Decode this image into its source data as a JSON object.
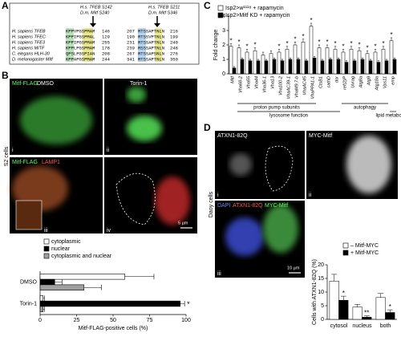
{
  "figure": {
    "panel_letters": [
      "A",
      "B",
      "C",
      "D"
    ],
    "alignment": {
      "sites": [
        {
          "human": "H.s. TFEB S142",
          "fly": "D.m. Mitf S240"
        },
        {
          "human": "H.s. TFEB S211",
          "fly": "D.m. Mitf S346"
        }
      ],
      "rows": [
        {
          "species": "H. sapiens TFEB",
          "seq1": "KPPVPGSPMAM",
          "end1": 146,
          "start2": 207,
          "seq2": "RTSSAPTNLN",
          "end2": 216
        },
        {
          "species": "H. sapiens TFEC",
          "seq1": "KPPIPGSPMAL",
          "end1": 129,
          "start2": 190,
          "seq2": "RTSSVPTNLN",
          "end2": 199
        },
        {
          "species": "H. sapiens TFE3",
          "seq1": "KPPIPGSPMAM",
          "end1": 255,
          "start2": 231,
          "seq2": "RTSSAPTNLN",
          "end2": 240
        },
        {
          "species": "H. sapiens MITF",
          "seq1": "KPPLPGSPMAM",
          "end1": 178,
          "start2": 239,
          "seq2": "RSSSAPTNLN",
          "end2": 248
        },
        {
          "species": "C. elegans HLH-30",
          "seq1": "QPSLPGSPIAN",
          "end1": 208,
          "start2": 267,
          "seq2": "RTSSAPSNLN",
          "end2": 276
        },
        {
          "species": "D. melanogaster Mitf",
          "seq1": "KPPAPGSPMAM",
          "end1": 244,
          "start2": 341,
          "seq2": "RTSSAPTNLN",
          "end2": 350
        }
      ]
    },
    "microscopy_B": {
      "side_label": "S2 cells",
      "conditions": [
        "DMSO",
        "Torin-1"
      ],
      "stain_top": "Mitf-FLAG",
      "stain_bottom": [
        "Mitf-FLAG",
        "LAMP1"
      ],
      "subpanels": [
        "i",
        "ii",
        "iii",
        "iv"
      ],
      "scale_bar": "5 µm"
    },
    "microscopy_D": {
      "side_label": "Daoy cells",
      "stains": [
        "ATXN1-82Q",
        "MYC-Mitf"
      ],
      "merge": [
        "DAPI",
        "ATXN1-82Q",
        "MYC-Mitf"
      ],
      "subpanels": [
        "i",
        "ii",
        "iii"
      ],
      "scale_bar": "10 µm"
    }
  },
  "chart_data": [
    {
      "type": "bar",
      "orientation": "horizontal",
      "categories": [
        "DMSO",
        "Torin-1"
      ],
      "series": [
        {
          "name": "cytoplasmic",
          "color": "#ffffff",
          "values": [
            58,
            2
          ],
          "errors": [
            20,
            1
          ],
          "significance": [
            null,
            null
          ]
        },
        {
          "name": "nuclear",
          "color": "#000000",
          "values": [
            10,
            96
          ],
          "errors": [
            5,
            3
          ],
          "significance": [
            null,
            "*"
          ]
        },
        {
          "name": "cytoplasmic and nuclear",
          "color": "#a0a0a0",
          "values": [
            30,
            2
          ],
          "errors": [
            12,
            1
          ],
          "significance": [
            null,
            null
          ]
        }
      ],
      "xlabel": "Mitf-FLAG-positive cells (%)",
      "xlim": [
        0,
        100
      ],
      "xticks": [
        0,
        25,
        50,
        75,
        100
      ]
    },
    {
      "type": "bar",
      "orientation": "vertical",
      "categories": [
        "Mitf",
        "Vha68-2",
        "Vha55",
        "Vha44",
        "Vha36-1",
        "Vha13",
        "Vha100-2",
        "VhaAC39-1",
        "VhaM9.7-b",
        "VhaAC45",
        "VhaPPA1-1",
        "CtsB1",
        "cathD",
        "dor",
        "ref(2)P",
        "Uvrag",
        "Atg8a",
        "Atg9",
        "Atg18a",
        "Vps11",
        "emp"
      ],
      "series": [
        {
          "name": "Isp2>w¹¹¹⁸ + rapamycin",
          "color": "#ffffff",
          "values": [
            1.9,
            1.8,
            1.5,
            1.6,
            1.3,
            1.4,
            1.5,
            1.7,
            2.0,
            2.2,
            3.3,
            1.8,
            1.8,
            1.7,
            1.5,
            1.7,
            1.6,
            1.4,
            1.5,
            1.7,
            2.3
          ],
          "errors": [
            0.2,
            0.2,
            0.2,
            0.2,
            0.2,
            0.2,
            0.2,
            0.2,
            0.2,
            0.2,
            0.2,
            0.2,
            0.2,
            0.2,
            0.2,
            0.2,
            0.2,
            0.2,
            0.2,
            0.2,
            0.2
          ],
          "significance": [
            "*",
            "*",
            "*",
            "*",
            null,
            null,
            "*",
            "*",
            "*",
            "*",
            "*",
            "*",
            "*",
            "*",
            "*",
            "*",
            "*",
            "*",
            "*",
            "*",
            "*"
          ]
        },
        {
          "name": "Isp2>Mitf KD + rapamycin",
          "color": "#000000",
          "values": [
            0.4,
            1.0,
            0.9,
            0.9,
            0.9,
            1.0,
            0.9,
            1.0,
            1.0,
            0.9,
            1.1,
            0.9,
            1.0,
            1.0,
            0.8,
            0.9,
            1.0,
            0.9,
            0.8,
            0.9,
            1.0
          ],
          "errors": [
            0.1,
            0.1,
            0.1,
            0.1,
            0.1,
            0.1,
            0.1,
            0.1,
            0.1,
            0.1,
            0.1,
            0.1,
            0.1,
            0.1,
            0.1,
            0.1,
            0.1,
            0.1,
            0.1,
            0.1,
            0.1
          ],
          "significance": [
            null,
            null,
            null,
            null,
            null,
            null,
            null,
            null,
            null,
            null,
            null,
            null,
            null,
            null,
            null,
            null,
            null,
            null,
            null,
            null,
            null
          ]
        }
      ],
      "ylabel": "Fold change",
      "ylim": [
        0,
        4
      ],
      "yticks": [
        0,
        1,
        2,
        3,
        4
      ],
      "groups": [
        {
          "label": "proton pump subunits",
          "first": "Vha68-2",
          "last": "VhaPPA1-1"
        },
        {
          "label": "autophagy",
          "first": "ref(2)P",
          "last": "Vps11"
        }
      ],
      "supergroups": [
        {
          "label": "lysosome function",
          "first": "Vha68-2",
          "last": "dor"
        },
        {
          "label": "lipid metabolism",
          "first": "emp",
          "last": "emp"
        }
      ]
    },
    {
      "type": "bar",
      "orientation": "vertical",
      "categories": [
        "cytosol",
        "nucleus",
        "both"
      ],
      "series": [
        {
          "name": "– Mitf-MYC",
          "color": "#ffffff",
          "values": [
            14,
            4.5,
            8
          ],
          "errors": [
            2.5,
            1,
            1.5
          ],
          "significance": [
            null,
            null,
            null
          ]
        },
        {
          "name": "+ Mitf-MYC",
          "color": "#000000",
          "values": [
            7,
            0.8,
            2.5
          ],
          "errors": [
            1.5,
            0.5,
            1
          ],
          "significance": [
            "*",
            "**",
            "*"
          ]
        }
      ],
      "ylabel": "Cells with ATXN1-82Q (%)",
      "ylim": [
        0,
        20
      ],
      "yticks": [
        0,
        5,
        10,
        15,
        20
      ]
    }
  ]
}
